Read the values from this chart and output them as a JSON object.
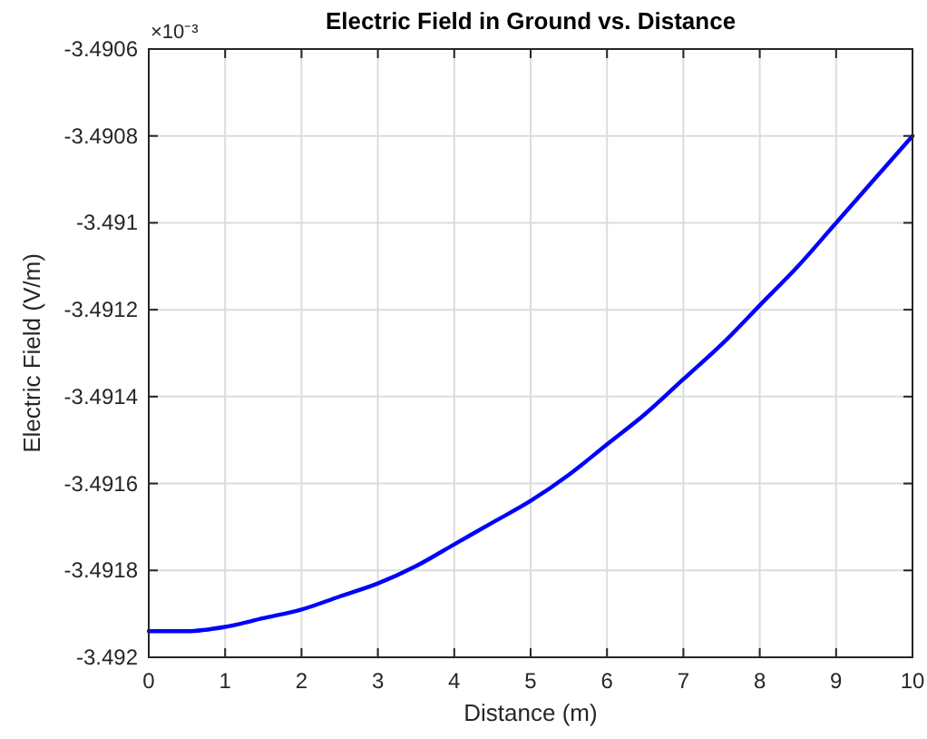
{
  "chart_data": {
    "type": "line",
    "title": "Electric Field in Ground vs. Distance",
    "xlabel": "Distance (m)",
    "ylabel": "Electric Field (V/m)",
    "annotations": [
      "×10⁻³"
    ],
    "x": [
      0,
      0.5,
      1,
      1.5,
      2,
      2.5,
      3,
      3.5,
      4,
      4.5,
      5,
      5.5,
      6,
      6.5,
      7,
      7.5,
      8,
      8.5,
      9,
      9.5,
      10
    ],
    "series": [
      {
        "color": "#0000ff",
        "values": [
          -3.49194,
          -3.49194,
          -3.49193,
          -3.49191,
          -3.49189,
          -3.49186,
          -3.49183,
          -3.49179,
          -3.49174,
          -3.49169,
          -3.49164,
          -3.49158,
          -3.49151,
          -3.49144,
          -3.49136,
          -3.49128,
          -3.49119,
          -3.4911,
          -3.491,
          -3.4909,
          -3.4908
        ]
      }
    ],
    "xlim": [
      0,
      10
    ],
    "xticks": [
      0,
      1,
      2,
      3,
      4,
      5,
      6,
      7,
      8,
      9,
      10
    ],
    "ylim": [
      -3.492,
      -3.4906
    ],
    "yticks": [
      -3.492,
      -3.4918,
      -3.4916,
      -3.4914,
      -3.4912,
      -3.491,
      -3.4908,
      -3.4906
    ],
    "grid": true,
    "marker": "none",
    "line_style": "solid"
  }
}
